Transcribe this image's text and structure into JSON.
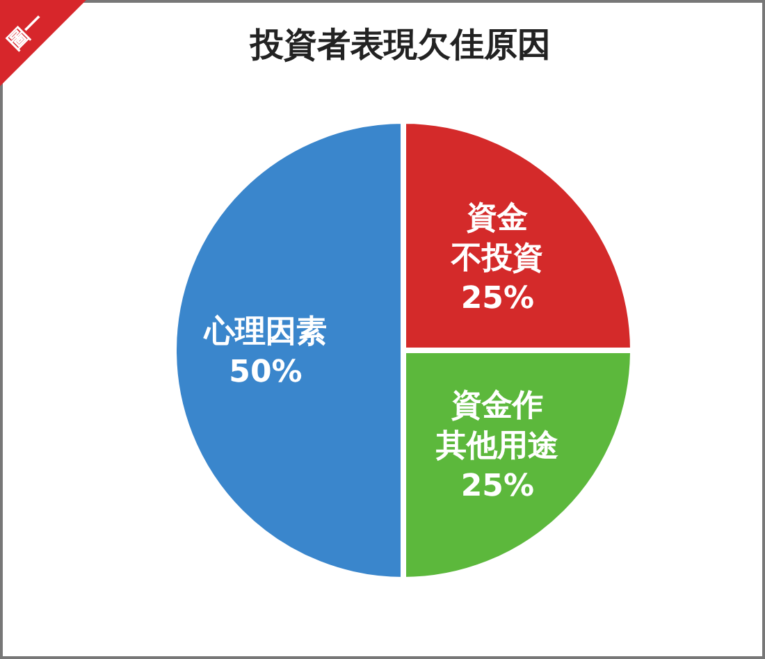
{
  "chart_data": {
    "type": "pie",
    "title": "投資者表現欠佳原因",
    "categories": [
      "資金不投資",
      "資金作其他用途",
      "心理因素"
    ],
    "values": [
      25,
      25,
      50
    ],
    "colors": [
      "#d42a2a",
      "#5cb83c",
      "#3a86cc"
    ],
    "value_labels": [
      "25%",
      "25%",
      "50%"
    ],
    "annotations": [
      "圖一"
    ]
  }
}
